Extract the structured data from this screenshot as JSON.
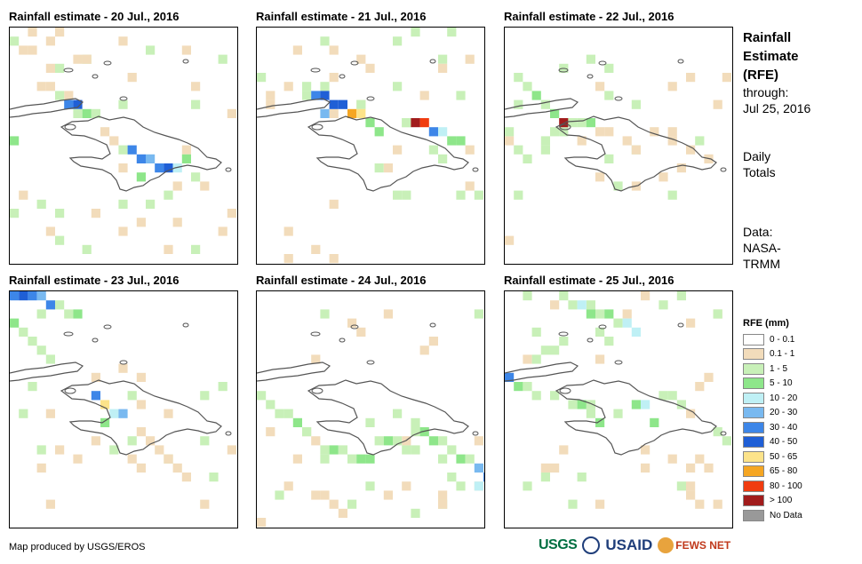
{
  "panels": [
    {
      "title": "Rainfall estimate - 20 Jul., 2016"
    },
    {
      "title": "Rainfall estimate - 21 Jul., 2016"
    },
    {
      "title": "Rainfall estimate - 22 Jul., 2016"
    },
    {
      "title": "Rainfall estimate - 23 Jul., 2016"
    },
    {
      "title": "Rainfall estimate - 24 Jul., 2016"
    },
    {
      "title": "Rainfall estimate - 25 Jul., 2016"
    }
  ],
  "side": {
    "title_line1": "Rainfall",
    "title_line2": "Estimate",
    "title_line3": "(RFE)",
    "through_label": "through:",
    "through_date": "Jul 25, 2016",
    "daily_line1": "Daily",
    "daily_line2": "Totals",
    "data_line1": "Data:",
    "data_line2": "NASA-",
    "data_line3": "TRMM"
  },
  "legend": {
    "title": "RFE (mm)",
    "items": [
      {
        "label": "0 - 0.1",
        "color": "#ffffff"
      },
      {
        "label": "0.1 - 1",
        "color": "#f2dcbb"
      },
      {
        "label": "1 - 5",
        "color": "#c8f0b8"
      },
      {
        "label": "5 - 10",
        "color": "#8ee68a"
      },
      {
        "label": "10 - 20",
        "color": "#bff0f5"
      },
      {
        "label": "20 - 30",
        "color": "#79b9f0"
      },
      {
        "label": "30 - 40",
        "color": "#3d86e8"
      },
      {
        "label": "40 - 50",
        "color": "#1f5fd6"
      },
      {
        "label": "50 - 65",
        "color": "#fce38a"
      },
      {
        "label": "65 - 80",
        "color": "#f5a623"
      },
      {
        "label": "80 - 100",
        "color": "#f03c10"
      },
      {
        "label": "> 100",
        "color": "#a11c1c"
      },
      {
        "label": "No Data",
        "color": "#999999"
      }
    ]
  },
  "footer": {
    "credit": "Map produced by USGS/EROS",
    "logo_usgs": "USGS",
    "logo_usaid": "USAID",
    "logo_fews": "FEWS NET"
  }
}
